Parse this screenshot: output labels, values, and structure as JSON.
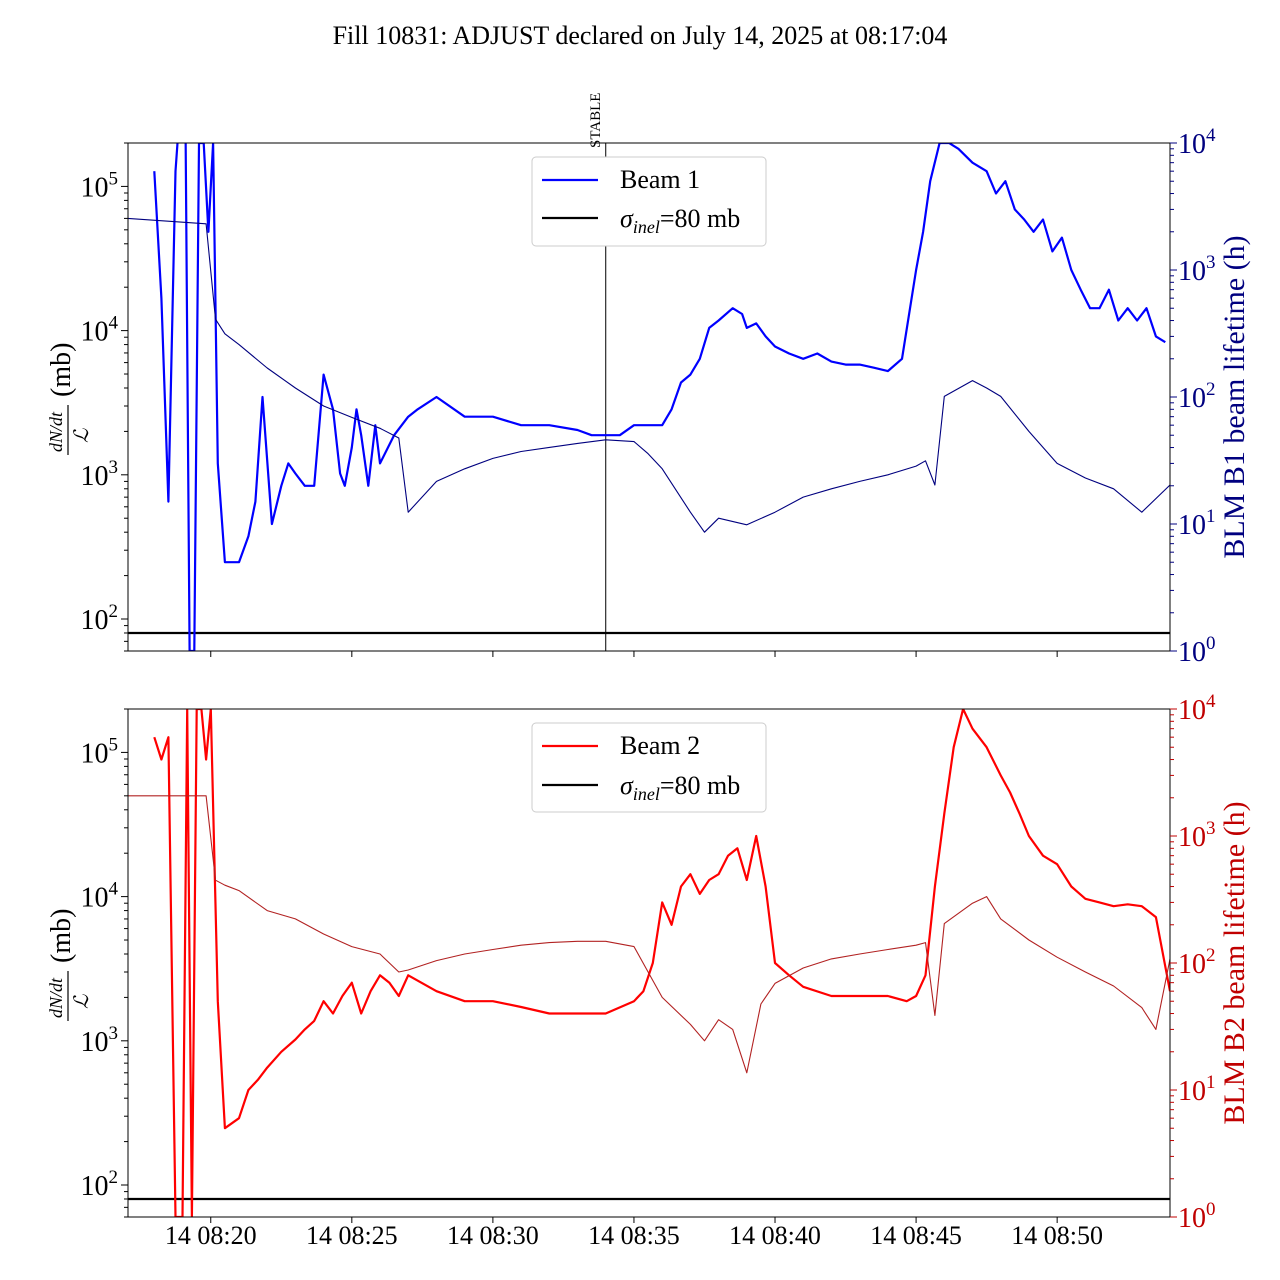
{
  "title": "Fill 10831: ADJUST declared on July 14, 2025 at 08:17:04",
  "marker_label": "STABLE",
  "x_ticks": [
    "14 08:20",
    "14 08:25",
    "14 08:30",
    "14 08:35",
    "14 08:40",
    "14 08:45",
    "14 08:50"
  ],
  "chart_data": [
    {
      "type": "line",
      "panel": "top",
      "ylabel_left": "dN/dt / L (mb)",
      "ylabel_right": "BLM B1 beam lifetime (h)",
      "left_axis": {
        "scale": "log",
        "range": [
          60,
          200000
        ],
        "ticks": [
          "10",
          "10",
          "10",
          "10"
        ],
        "tick_exp": [
          "2",
          "3",
          "4",
          "5"
        ]
      },
      "right_axis": {
        "scale": "log",
        "range": [
          1,
          10000
        ],
        "ticks": [
          "10",
          "10",
          "10",
          "10",
          "10"
        ],
        "tick_exp": [
          "0",
          "1",
          "2",
          "3",
          "4"
        ],
        "color": "#00007f"
      },
      "x_range_minutes": [
        "08:17:04",
        "08:54:00"
      ],
      "vline": {
        "time": "08:34:00",
        "label": "STABLE"
      },
      "hline": {
        "value": 80,
        "label": "σinel=80 mb"
      },
      "legend": {
        "position": "upper-center",
        "entries": [
          {
            "name": "Beam 1",
            "color": "#0000ff"
          },
          {
            "name": "σinel=80 mb",
            "color": "#000000"
          }
        ]
      },
      "series": [
        {
          "name": "Beam 1",
          "axis": "right",
          "color": "#0000ff",
          "x": [
            "08:18:00",
            "08:18:15",
            "08:18:30",
            "08:18:45",
            "08:18:55",
            "08:19:05",
            "08:19:15",
            "08:19:25",
            "08:19:35",
            "08:19:45",
            "08:19:55",
            "08:20:05",
            "08:20:15",
            "08:20:30",
            "08:21:00",
            "08:21:20",
            "08:21:35",
            "08:21:50",
            "08:22:10",
            "08:22:30",
            "08:22:45",
            "08:23:00",
            "08:23:20",
            "08:23:40",
            "08:24:00",
            "08:24:20",
            "08:24:35",
            "08:24:45",
            "08:25:00",
            "08:25:10",
            "08:25:20",
            "08:25:35",
            "08:25:50",
            "08:26:00",
            "08:26:30",
            "08:27:00",
            "08:27:20",
            "08:28:00",
            "08:29:00",
            "08:30:00",
            "08:31:00",
            "08:32:00",
            "08:33:00",
            "08:33:30",
            "08:33:45",
            "08:34:00",
            "08:34:30",
            "08:35:00",
            "08:35:30",
            "08:36:00",
            "08:36:20",
            "08:36:40",
            "08:37:00",
            "08:37:20",
            "08:37:40",
            "08:38:00",
            "08:38:30",
            "08:38:50",
            "08:39:00",
            "08:39:20",
            "08:39:40",
            "08:40:00",
            "08:40:30",
            "08:41:00",
            "08:41:30",
            "08:42:00",
            "08:42:30",
            "08:43:00",
            "08:43:30",
            "08:44:00",
            "08:44:30",
            "08:45:00",
            "08:45:15",
            "08:45:30",
            "08:45:50",
            "08:46:00",
            "08:46:10",
            "08:46:30",
            "08:47:00",
            "08:47:30",
            "08:47:50",
            "08:48:10",
            "08:48:30",
            "08:48:50",
            "08:49:10",
            "08:49:30",
            "08:49:50",
            "08:50:10",
            "08:50:30",
            "08:50:50",
            "08:51:10",
            "08:51:30",
            "08:51:50",
            "08:52:10",
            "08:52:30",
            "08:52:50",
            "08:53:10",
            "08:53:30",
            "08:53:50"
          ],
          "y": [
            6000,
            600,
            15,
            6000,
            20000,
            60000,
            1,
            1,
            10000,
            10000,
            2000,
            10000,
            30,
            5,
            5,
            8,
            15,
            100,
            10,
            20,
            30,
            25,
            20,
            20,
            150,
            80,
            25,
            20,
            40,
            80,
            50,
            20,
            60,
            30,
            50,
            70,
            80,
            100,
            70,
            70,
            60,
            60,
            55,
            50,
            50,
            50,
            50,
            60,
            60,
            60,
            80,
            130,
            150,
            200,
            350,
            400,
            500,
            450,
            350,
            380,
            300,
            250,
            220,
            200,
            220,
            190,
            180,
            180,
            170,
            160,
            200,
            1000,
            2000,
            5000,
            10000,
            10000,
            10000,
            9000,
            7000,
            6000,
            4000,
            5000,
            3000,
            2500,
            2000,
            2500,
            1400,
            1800,
            1000,
            700,
            500,
            500,
            700,
            400,
            500,
            400,
            500,
            300,
            270
          ]
        },
        {
          "name": "dN/dt / L (Beam 1)",
          "axis": "left",
          "color": "#00007f",
          "x": [
            "08:17:04",
            "08:19:50",
            "08:20:10",
            "08:20:30",
            "08:21:00",
            "08:22:00",
            "08:23:00",
            "08:24:00",
            "08:25:00",
            "08:26:00",
            "08:26:40",
            "08:27:00",
            "08:28:00",
            "08:29:00",
            "08:30:00",
            "08:31:00",
            "08:32:00",
            "08:33:00",
            "08:34:00",
            "08:35:00",
            "08:35:30",
            "08:36:00",
            "08:37:00",
            "08:37:30",
            "08:38:00",
            "08:39:00",
            "08:40:00",
            "08:41:00",
            "08:42:00",
            "08:43:00",
            "08:44:00",
            "08:45:00",
            "08:45:20",
            "08:45:40",
            "08:46:00",
            "08:47:00",
            "08:47:30",
            "08:48:00",
            "08:49:00",
            "08:50:00",
            "08:51:00",
            "08:52:00",
            "08:53:00",
            "08:54:00"
          ],
          "y": [
            60000,
            55000,
            12000,
            9500,
            8000,
            5500,
            4000,
            3000,
            2500,
            2100,
            1800,
            550,
            900,
            1100,
            1300,
            1450,
            1550,
            1650,
            1750,
            1700,
            1400,
            1100,
            550,
            400,
            500,
            450,
            550,
            700,
            800,
            900,
            1000,
            1150,
            1250,
            850,
            3500,
            4500,
            4000,
            3500,
            2000,
            1200,
            950,
            800,
            550,
            850
          ]
        }
      ]
    },
    {
      "type": "line",
      "panel": "bottom",
      "ylabel_left": "dN/dt / L (mb)",
      "ylabel_right": "BLM B2 beam lifetime (h)",
      "left_axis": {
        "scale": "log",
        "range": [
          60,
          200000
        ],
        "ticks": [
          "10",
          "10",
          "10",
          "10"
        ],
        "tick_exp": [
          "2",
          "3",
          "4",
          "5"
        ]
      },
      "right_axis": {
        "scale": "log",
        "range": [
          1,
          10000
        ],
        "ticks": [
          "10",
          "10",
          "10",
          "10",
          "10"
        ],
        "tick_exp": [
          "0",
          "1",
          "2",
          "3",
          "4"
        ],
        "color": "#c00000"
      },
      "x_range_minutes": [
        "08:17:04",
        "08:54:00"
      ],
      "hline": {
        "value": 80,
        "label": "σinel=80 mb"
      },
      "legend": {
        "position": "upper-center",
        "entries": [
          {
            "name": "Beam 2",
            "color": "#ff0000"
          },
          {
            "name": "σinel=80 mb",
            "color": "#000000"
          }
        ]
      },
      "series": [
        {
          "name": "Beam 2",
          "axis": "right",
          "color": "#ff0000",
          "x": [
            "08:18:00",
            "08:18:15",
            "08:18:30",
            "08:18:45",
            "08:19:00",
            "08:19:10",
            "08:19:20",
            "08:19:30",
            "08:19:40",
            "08:19:50",
            "08:20:00",
            "08:20:15",
            "08:20:30",
            "08:21:00",
            "08:21:20",
            "08:21:40",
            "08:22:00",
            "08:22:30",
            "08:23:00",
            "08:23:20",
            "08:23:40",
            "08:24:00",
            "08:24:20",
            "08:24:40",
            "08:25:00",
            "08:25:20",
            "08:25:40",
            "08:26:00",
            "08:26:20",
            "08:26:40",
            "08:27:00",
            "08:28:00",
            "08:29:00",
            "08:30:00",
            "08:31:00",
            "08:32:00",
            "08:33:00",
            "08:34:00",
            "08:35:00",
            "08:35:20",
            "08:35:40",
            "08:36:00",
            "08:36:20",
            "08:36:40",
            "08:37:00",
            "08:37:20",
            "08:37:40",
            "08:38:00",
            "08:38:20",
            "08:38:40",
            "08:39:00",
            "08:39:20",
            "08:39:40",
            "08:40:00",
            "08:40:30",
            "08:41:00",
            "08:42:00",
            "08:43:00",
            "08:44:00",
            "08:44:40",
            "08:45:00",
            "08:45:20",
            "08:45:40",
            "08:46:00",
            "08:46:20",
            "08:46:40",
            "08:47:00",
            "08:47:30",
            "08:48:00",
            "08:48:20",
            "08:48:40",
            "08:49:00",
            "08:49:30",
            "08:50:00",
            "08:50:30",
            "08:51:00",
            "08:51:30",
            "08:52:00",
            "08:52:30",
            "08:53:00",
            "08:53:30",
            "08:54:00"
          ],
          "y": [
            6000,
            4000,
            6000,
            1,
            1,
            10000,
            1,
            10000,
            10000,
            4000,
            10000,
            50,
            5,
            6,
            10,
            12,
            15,
            20,
            25,
            30,
            35,
            50,
            40,
            55,
            70,
            40,
            60,
            80,
            70,
            55,
            80,
            60,
            50,
            50,
            45,
            40,
            40,
            40,
            50,
            60,
            100,
            300,
            200,
            400,
            500,
            350,
            450,
            500,
            700,
            800,
            450,
            1000,
            400,
            100,
            80,
            65,
            55,
            55,
            55,
            50,
            55,
            80,
            400,
            1500,
            5000,
            10000,
            7000,
            5000,
            3000,
            2200,
            1500,
            1000,
            700,
            600,
            400,
            320,
            300,
            280,
            290,
            280,
            230,
            60
          ]
        },
        {
          "name": "dN/dt / L (Beam 2)",
          "axis": "left",
          "color": "#b22222",
          "x": [
            "08:17:04",
            "08:19:50",
            "08:20:10",
            "08:20:30",
            "08:21:00",
            "08:22:00",
            "08:23:00",
            "08:24:00",
            "08:25:00",
            "08:26:00",
            "08:26:40",
            "08:27:00",
            "08:28:00",
            "08:29:00",
            "08:30:00",
            "08:31:00",
            "08:32:00",
            "08:33:00",
            "08:34:00",
            "08:35:00",
            "08:35:30",
            "08:36:00",
            "08:37:00",
            "08:37:30",
            "08:38:00",
            "08:38:30",
            "08:39:00",
            "08:39:30",
            "08:40:00",
            "08:41:00",
            "08:42:00",
            "08:43:00",
            "08:44:00",
            "08:45:00",
            "08:45:20",
            "08:45:40",
            "08:46:00",
            "08:47:00",
            "08:47:30",
            "08:48:00",
            "08:49:00",
            "08:50:00",
            "08:51:00",
            "08:52:00",
            "08:53:00",
            "08:53:30",
            "08:54:00"
          ],
          "y": [
            50000,
            50000,
            13000,
            12000,
            11000,
            8000,
            7000,
            5500,
            4500,
            4000,
            3000,
            3100,
            3600,
            4000,
            4300,
            4600,
            4800,
            4900,
            4900,
            4500,
            3000,
            2000,
            1300,
            1000,
            1400,
            1200,
            600,
            1800,
            2500,
            3200,
            3700,
            4000,
            4300,
            4600,
            4800,
            1500,
            6500,
            9000,
            10000,
            7000,
            5000,
            3800,
            3000,
            2400,
            1700,
            1200,
            3700
          ]
        }
      ]
    }
  ]
}
